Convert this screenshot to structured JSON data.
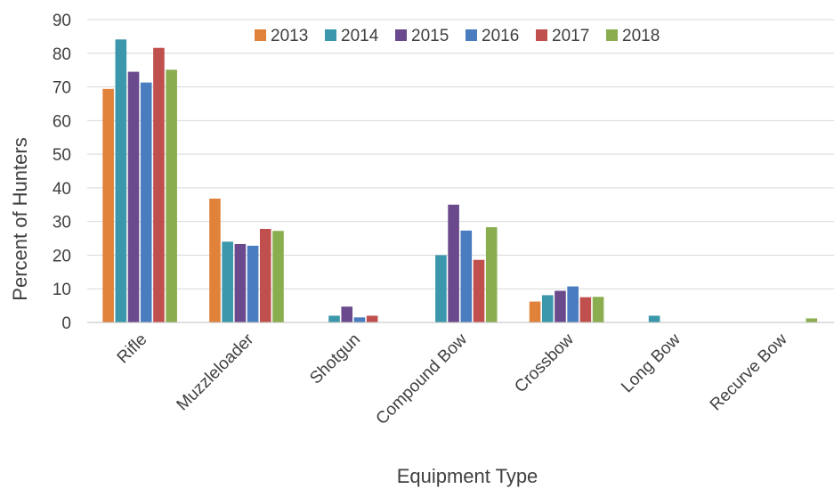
{
  "chart_data": {
    "type": "bar",
    "title": "",
    "xlabel": "Equipment Type",
    "ylabel": "Percent of Hunters",
    "ylim": [
      0,
      90
    ],
    "yticks": [
      0,
      10,
      20,
      30,
      40,
      50,
      60,
      70,
      80,
      90
    ],
    "grid": true,
    "legend_position": "top",
    "categories": [
      "Rifle",
      "Muzzleloader",
      "Shotgun",
      "Compound Bow",
      "Crossbow",
      "Long Bow",
      "Recurve Bow"
    ],
    "series": [
      {
        "name": "2013",
        "color": "#E0823A",
        "values": [
          69.4,
          36.8,
          0,
          0,
          6.2,
          0,
          0
        ]
      },
      {
        "name": "2014",
        "color": "#3B97AB",
        "values": [
          84.1,
          24.0,
          2.0,
          20.0,
          8.1,
          2.0,
          0
        ]
      },
      {
        "name": "2015",
        "color": "#6A4A8C",
        "values": [
          74.5,
          23.3,
          4.7,
          35.0,
          9.4,
          0,
          0
        ]
      },
      {
        "name": "2016",
        "color": "#4A7CC0",
        "values": [
          71.3,
          22.8,
          1.5,
          27.3,
          10.7,
          0,
          0
        ]
      },
      {
        "name": "2017",
        "color": "#C0504D",
        "values": [
          81.6,
          27.8,
          2.0,
          18.6,
          7.5,
          0,
          0
        ]
      },
      {
        "name": "2018",
        "color": "#8AAE4F",
        "values": [
          75.1,
          27.2,
          0,
          28.3,
          7.6,
          0,
          1.2
        ]
      }
    ]
  }
}
